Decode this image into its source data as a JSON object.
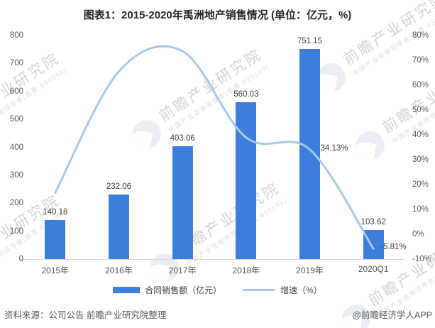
{
  "title": "图表1：2015-2020年禹洲地产销售情况 (单位：亿元，%)",
  "legend": {
    "bar_label": "合同销售额（亿元）",
    "line_label": "增速（%）"
  },
  "footer": {
    "source": "资料来源：公司公告 前瞻产业研究院整理",
    "credit": "@前瞻经济学人APP"
  },
  "watermark": {
    "brand_large": "前瞻产业研究院",
    "brand_small": "中国产业咨询领导者(股票:839599)"
  },
  "colors": {
    "bar": "#3d7edb",
    "line": "#a6c9ee",
    "axis_text": "#595959",
    "label_text": "#3f3f3f",
    "axis_line": "#d9d9d9"
  },
  "chart_data": {
    "type": "bar+line combo",
    "title": "图表1：2015-2020年禹洲地产销售情况 (单位：亿元，%)",
    "categories": [
      "2015年",
      "2016年",
      "2017年",
      "2018年",
      "2019年",
      "2020Q1"
    ],
    "series": [
      {
        "name": "合同销售额（亿元）",
        "type": "bar",
        "axis": "left",
        "color": "#3d7edb",
        "values": [
          140.18,
          232.06,
          403.06,
          560.03,
          751.15,
          103.62
        ],
        "labels": [
          "140.18",
          "232.06",
          "403.06",
          "560.03",
          "751.15",
          "103.62"
        ]
      },
      {
        "name": "增速（%）",
        "type": "line",
        "axis": "right",
        "color": "#a6c9ee",
        "smooth": true,
        "values": [
          16.7,
          65.54,
          73.69,
          38.94,
          34.13,
          -5.81
        ],
        "point_labels": [
          {
            "index": 4,
            "text": "34.13%"
          },
          {
            "index": 5,
            "text": "-5.81%"
          }
        ]
      }
    ],
    "left_axis": {
      "min": 0,
      "max": 800,
      "ticks": [
        800,
        700,
        600,
        500,
        400,
        300,
        200,
        100,
        0
      ],
      "unit": "亿元"
    },
    "right_axis": {
      "min": -10,
      "max": 80,
      "ticks": [
        "80%",
        "70%",
        "60%",
        "50%",
        "40%",
        "30%",
        "20%",
        "10%",
        "0%",
        "-10%"
      ],
      "unit": "%"
    },
    "grid": false,
    "legend_position": "bottom"
  }
}
